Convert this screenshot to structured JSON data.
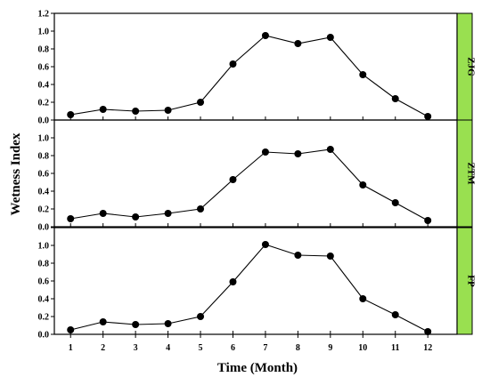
{
  "chart_data": {
    "type": "line",
    "xlabel": "Time (Month)",
    "ylabel": "Wetness Index",
    "x": [
      1,
      2,
      3,
      4,
      5,
      6,
      7,
      8,
      9,
      10,
      11,
      12
    ],
    "xlim": [
      0.5,
      12.9
    ],
    "ylim": [
      0,
      1.2
    ],
    "yticks": [
      "0.0",
      "0.2",
      "0.4",
      "0.6",
      "0.8",
      "1.0",
      "1.2"
    ],
    "strip_color": "#99e050",
    "line_color": "#000000",
    "grid": false,
    "panels": [
      {
        "label": "ZJG",
        "values": [
          0.06,
          0.12,
          0.1,
          0.11,
          0.2,
          0.63,
          0.95,
          0.86,
          0.93,
          0.51,
          0.24,
          0.04
        ]
      },
      {
        "label": "ZTM",
        "values": [
          0.09,
          0.15,
          0.11,
          0.15,
          0.2,
          0.53,
          0.84,
          0.82,
          0.87,
          0.47,
          0.27,
          0.07
        ]
      },
      {
        "label": "FP",
        "values": [
          0.05,
          0.14,
          0.11,
          0.12,
          0.2,
          0.59,
          1.01,
          0.89,
          0.88,
          0.4,
          0.22,
          0.03
        ]
      }
    ]
  }
}
